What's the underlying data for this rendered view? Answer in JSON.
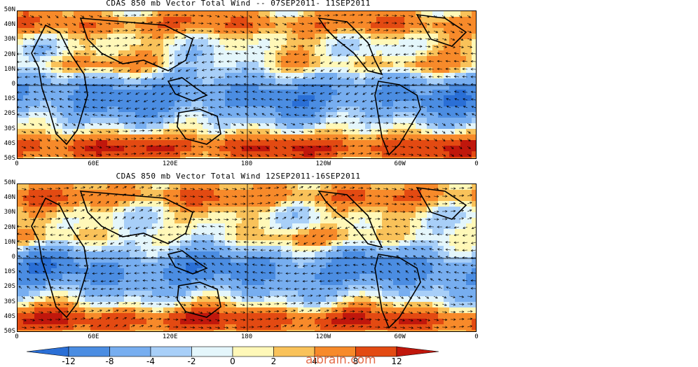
{
  "panels": [
    {
      "title": "CDAS 850 mb Vector Total Wind -- 07SEP2011- 11SEP2011"
    },
    {
      "title": "CDAS 850 mb Vector Total Wind 12SEP2011-16SEP2011"
    }
  ],
  "lat_labels": [
    "50N",
    "40N",
    "30N",
    "20N",
    "10N",
    "0",
    "10S",
    "20S",
    "30S",
    "40S",
    "50S"
  ],
  "lon_labels": [
    "0",
    "60E",
    "120E",
    "180",
    "120W",
    "60W",
    "0"
  ],
  "colorbar": {
    "labels": [
      "-12",
      "-8",
      "-4",
      "-2",
      "0",
      "2",
      "4",
      "8",
      "12"
    ],
    "colors": [
      "#2a6fd6",
      "#4b8de2",
      "#77aef0",
      "#a8cff8",
      "#e4f6fb",
      "#fff8b8",
      "#f9c25a",
      "#f78a2a",
      "#e34a12",
      "#c0170c"
    ]
  },
  "watermark": "aibrain.com"
}
